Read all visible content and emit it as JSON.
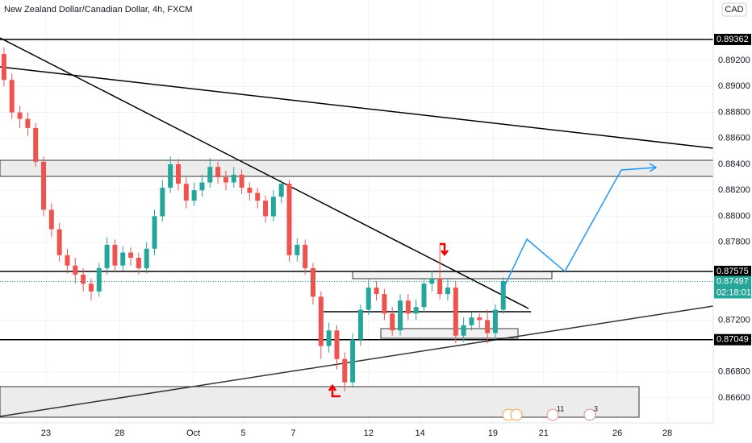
{
  "chart_data": {
    "type": "candlestick",
    "title": "New Zealand Dollar/Canadian Dollar, 4h, FXCM",
    "currency": "CAD",
    "open": [
      0.8925,
      0.8905,
      0.888,
      0.8875,
      0.8868,
      0.8842,
      0.8805,
      0.879,
      0.877,
      0.8762,
      0.8755,
      0.8748,
      0.8742,
      0.876,
      0.8778,
      0.8762,
      0.8772,
      0.8768,
      0.876,
      0.8775,
      0.88,
      0.8822,
      0.884,
      0.8825,
      0.8812,
      0.882,
      0.8826,
      0.8838,
      0.883,
      0.8826,
      0.8832,
      0.8822,
      0.8818,
      0.8812,
      0.88,
      0.8815,
      0.8825,
      0.877,
      0.8778,
      0.876,
      0.8738,
      0.87,
      0.8712,
      0.869,
      0.8672,
      0.8705,
      0.8728,
      0.8745,
      0.874,
      0.8725,
      0.8712,
      0.8735,
      0.8725,
      0.873,
      0.8748,
      0.8752,
      0.874,
      0.8745,
      0.8708,
      0.8716,
      0.8722,
      0.872,
      0.871,
      0.8728
    ],
    "high": [
      0.893,
      0.891,
      0.8885,
      0.888,
      0.8872,
      0.8846,
      0.881,
      0.8795,
      0.8775,
      0.8768,
      0.876,
      0.8752,
      0.8764,
      0.8784,
      0.8782,
      0.8777,
      0.8776,
      0.8772,
      0.878,
      0.8805,
      0.8828,
      0.8846,
      0.8844,
      0.883,
      0.8826,
      0.8832,
      0.8845,
      0.8842,
      0.8835,
      0.8838,
      0.8836,
      0.8826,
      0.8822,
      0.8816,
      0.882,
      0.8828,
      0.8828,
      0.8783,
      0.8782,
      0.8764,
      0.8742,
      0.8718,
      0.8716,
      0.8695,
      0.871,
      0.8732,
      0.8752,
      0.875,
      0.8744,
      0.873,
      0.874,
      0.874,
      0.8736,
      0.8752,
      0.8758,
      0.8778,
      0.8752,
      0.875,
      0.8722,
      0.8726,
      0.8725,
      0.8728,
      0.8732,
      0.8753
    ],
    "low": [
      0.89,
      0.8875,
      0.8868,
      0.8862,
      0.8838,
      0.88,
      0.8784,
      0.8765,
      0.8756,
      0.8748,
      0.8742,
      0.8735,
      0.8738,
      0.8755,
      0.8757,
      0.8758,
      0.8762,
      0.8755,
      0.8756,
      0.877,
      0.8796,
      0.8818,
      0.882,
      0.8806,
      0.8808,
      0.8815,
      0.8822,
      0.8825,
      0.882,
      0.8822,
      0.8817,
      0.8812,
      0.8806,
      0.8795,
      0.8796,
      0.881,
      0.8765,
      0.8765,
      0.8755,
      0.8732,
      0.869,
      0.8695,
      0.8682,
      0.8665,
      0.8668,
      0.87,
      0.8724,
      0.8735,
      0.872,
      0.8708,
      0.8708,
      0.872,
      0.872,
      0.8726,
      0.8742,
      0.8736,
      0.8735,
      0.8702,
      0.8703,
      0.8712,
      0.8714,
      0.8702,
      0.8706,
      0.8725
    ],
    "close": [
      0.8905,
      0.888,
      0.8875,
      0.8868,
      0.8842,
      0.8805,
      0.879,
      0.877,
      0.8762,
      0.8755,
      0.8748,
      0.8742,
      0.876,
      0.8778,
      0.8762,
      0.8772,
      0.8768,
      0.876,
      0.8775,
      0.88,
      0.8822,
      0.884,
      0.8825,
      0.8812,
      0.882,
      0.8826,
      0.8838,
      0.883,
      0.8826,
      0.8832,
      0.8822,
      0.8818,
      0.8812,
      0.88,
      0.8815,
      0.8825,
      0.877,
      0.8778,
      0.876,
      0.8738,
      0.87,
      0.8712,
      0.869,
      0.8672,
      0.8705,
      0.8728,
      0.8745,
      0.874,
      0.8725,
      0.8712,
      0.8735,
      0.8725,
      0.873,
      0.8748,
      0.8752,
      0.874,
      0.8745,
      0.8708,
      0.8716,
      0.8722,
      0.872,
      0.871,
      0.8728,
      0.875
    ],
    "up_color": "#26a69a",
    "down_color": "#ef5350",
    "ylim": [
      0.86408,
      0.89666
    ],
    "yticks": [
      {
        "value": 0.866,
        "label": "0.86600"
      },
      {
        "value": 0.868,
        "label": "0.86800"
      },
      {
        "value": 0.872,
        "label": "0.87200"
      },
      {
        "value": 0.878,
        "label": "0.87800"
      },
      {
        "value": 0.88,
        "label": "0.88000"
      },
      {
        "value": 0.882,
        "label": "0.88200"
      },
      {
        "value": 0.884,
        "label": "0.88400"
      },
      {
        "value": 0.886,
        "label": "0.88600"
      },
      {
        "value": 0.888,
        "label": "0.88800"
      },
      {
        "value": 0.89,
        "label": "0.89000"
      },
      {
        "value": 0.892,
        "label": "0.89200"
      }
    ],
    "xlim": [
      0,
      90
    ],
    "xticks": [
      {
        "value": 5.8,
        "label": "23"
      },
      {
        "value": 15.1,
        "label": "28"
      },
      {
        "value": 24.4,
        "label": "Oct"
      },
      {
        "value": 30.7,
        "label": "5"
      },
      {
        "value": 37,
        "label": "7"
      },
      {
        "value": 46.5,
        "label": "12"
      },
      {
        "value": 53,
        "label": "14"
      },
      {
        "value": 62.2,
        "label": "19"
      },
      {
        "value": 68.6,
        "label": "21"
      },
      {
        "value": 77.9,
        "label": "26"
      },
      {
        "value": 84.2,
        "label": "28"
      }
    ],
    "price_lines": [
      0.89362,
      0.87575,
      0.87049
    ],
    "last_price": 0.87497,
    "countdown": "02:18:01",
    "events": [
      "11",
      "3"
    ]
  }
}
